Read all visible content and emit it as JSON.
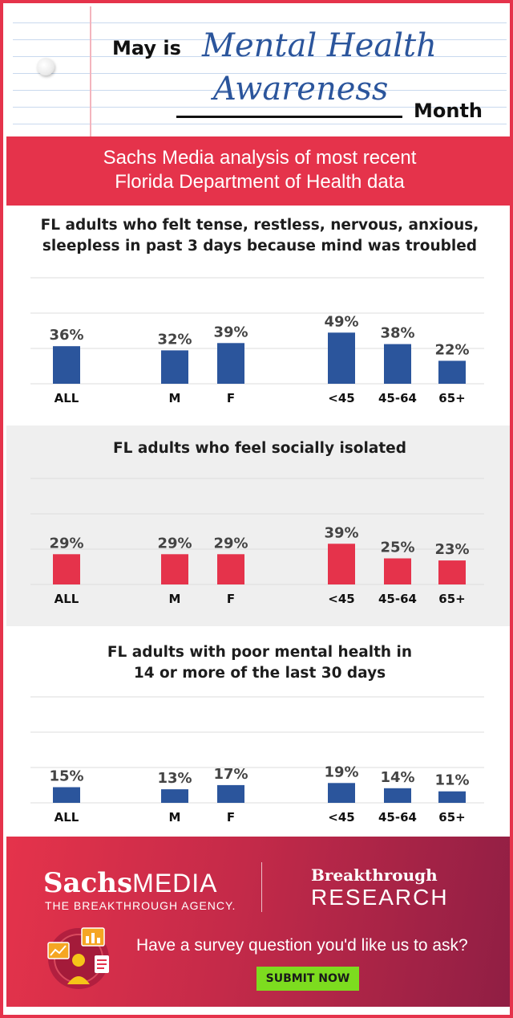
{
  "header": {
    "prefix": "May is",
    "title_line1": "Mental Health",
    "title_line2": "Awareness",
    "suffix": "Month"
  },
  "band": {
    "line1": "Sachs Media analysis of most recent",
    "line2": "Florida Department of Health data"
  },
  "colors": {
    "blue": "#2b559c",
    "red": "#e5334b",
    "green": "#7ddc1f"
  },
  "chart_data": [
    {
      "type": "bar",
      "title_lines": [
        "FL adults who felt tense, restless, nervous, anxious,",
        "sleepless in past 3 days because mind was troubled"
      ],
      "categories": [
        "ALL",
        "M",
        "F",
        "<45",
        "45-64",
        "65+"
      ],
      "values": [
        36,
        32,
        39,
        49,
        38,
        22
      ],
      "value_labels": [
        "36%",
        "32%",
        "39%",
        "49%",
        "38%",
        "22%"
      ],
      "unit": "%",
      "color": "#2b559c",
      "grid": true,
      "ylim": [
        0,
        60
      ]
    },
    {
      "type": "bar",
      "title_lines": [
        "FL adults who feel socially isolated"
      ],
      "categories": [
        "ALL",
        "M",
        "F",
        "<45",
        "45-64",
        "65+"
      ],
      "values": [
        29,
        29,
        29,
        39,
        25,
        23
      ],
      "value_labels": [
        "29%",
        "29%",
        "29%",
        "39%",
        "25%",
        "23%"
      ],
      "unit": "%",
      "color": "#e5334b",
      "grid": true,
      "ylim": [
        0,
        60
      ]
    },
    {
      "type": "bar",
      "title_lines": [
        "FL adults with poor mental health in",
        "14 or more of the last 30 days"
      ],
      "categories": [
        "ALL",
        "M",
        "F",
        "<45",
        "45-64",
        "65+"
      ],
      "values": [
        15,
        13,
        17,
        19,
        14,
        11
      ],
      "value_labels": [
        "15%",
        "13%",
        "17%",
        "19%",
        "14%",
        "11%"
      ],
      "unit": "%",
      "color": "#2b559c",
      "grid": true,
      "ylim": [
        0,
        60
      ]
    }
  ],
  "footer": {
    "logo_left_bold": "Sachs",
    "logo_left_light": "MEDIA",
    "logo_tagline": "THE BREAKTHROUGH AGENCY.",
    "logo_right_top": "Breakthrough",
    "logo_right_bottom": "RESEARCH",
    "question": "Have a survey question you'd like us to ask?",
    "button_label": "SUBMIT NOW",
    "illustration_icon": "survey-analytics-illustration-icon"
  }
}
